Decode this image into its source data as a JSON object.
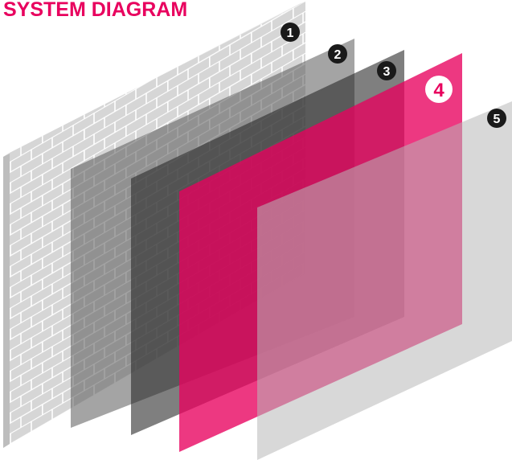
{
  "title": "SYSTEM DIAGRAM",
  "layers": [
    {
      "number": "1",
      "kind": "brick wall",
      "color": "#d4d4d4"
    },
    {
      "number": "2",
      "kind": "panel",
      "color": "#6e6e6e"
    },
    {
      "number": "3",
      "kind": "panel",
      "color": "#3a3a3a"
    },
    {
      "number": "4",
      "kind": "panel",
      "color": "#e8005e"
    },
    {
      "number": "5",
      "kind": "panel",
      "color": "#c7c7c7"
    }
  ],
  "colors": {
    "accent": "#e8005e",
    "badge_dark": "#1a1a1a",
    "badge_text": "#ffffff"
  }
}
